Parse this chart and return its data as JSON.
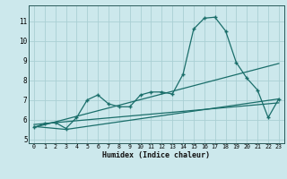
{
  "bg_color": "#cce8ec",
  "grid_color": "#aacfd4",
  "line_color": "#1a6e6a",
  "xlabel": "Humidex (Indice chaleur)",
  "xlim": [
    -0.5,
    23.5
  ],
  "ylim": [
    4.8,
    11.8
  ],
  "yticks": [
    5,
    6,
    7,
    8,
    9,
    10,
    11
  ],
  "xticks": [
    0,
    1,
    2,
    3,
    4,
    5,
    6,
    7,
    8,
    9,
    10,
    11,
    12,
    13,
    14,
    15,
    16,
    17,
    18,
    19,
    20,
    21,
    22,
    23
  ],
  "series1_x": [
    0,
    1,
    2,
    3,
    4,
    5,
    6,
    7,
    8,
    9,
    10,
    11,
    12,
    13,
    14,
    15,
    16,
    17,
    18,
    19,
    20,
    21,
    22,
    23
  ],
  "series1_y": [
    5.6,
    5.8,
    5.85,
    5.55,
    6.1,
    7.0,
    7.25,
    6.8,
    6.65,
    6.65,
    7.25,
    7.4,
    7.4,
    7.3,
    8.3,
    10.6,
    11.15,
    11.2,
    10.5,
    8.9,
    8.1,
    7.5,
    6.1,
    7.05
  ],
  "series2_x": [
    0,
    23
  ],
  "series2_y": [
    5.6,
    8.85
  ],
  "series3_x": [
    0,
    23
  ],
  "series3_y": [
    5.75,
    6.85
  ],
  "series4_x": [
    0,
    3,
    23
  ],
  "series4_y": [
    5.65,
    5.5,
    7.05
  ]
}
